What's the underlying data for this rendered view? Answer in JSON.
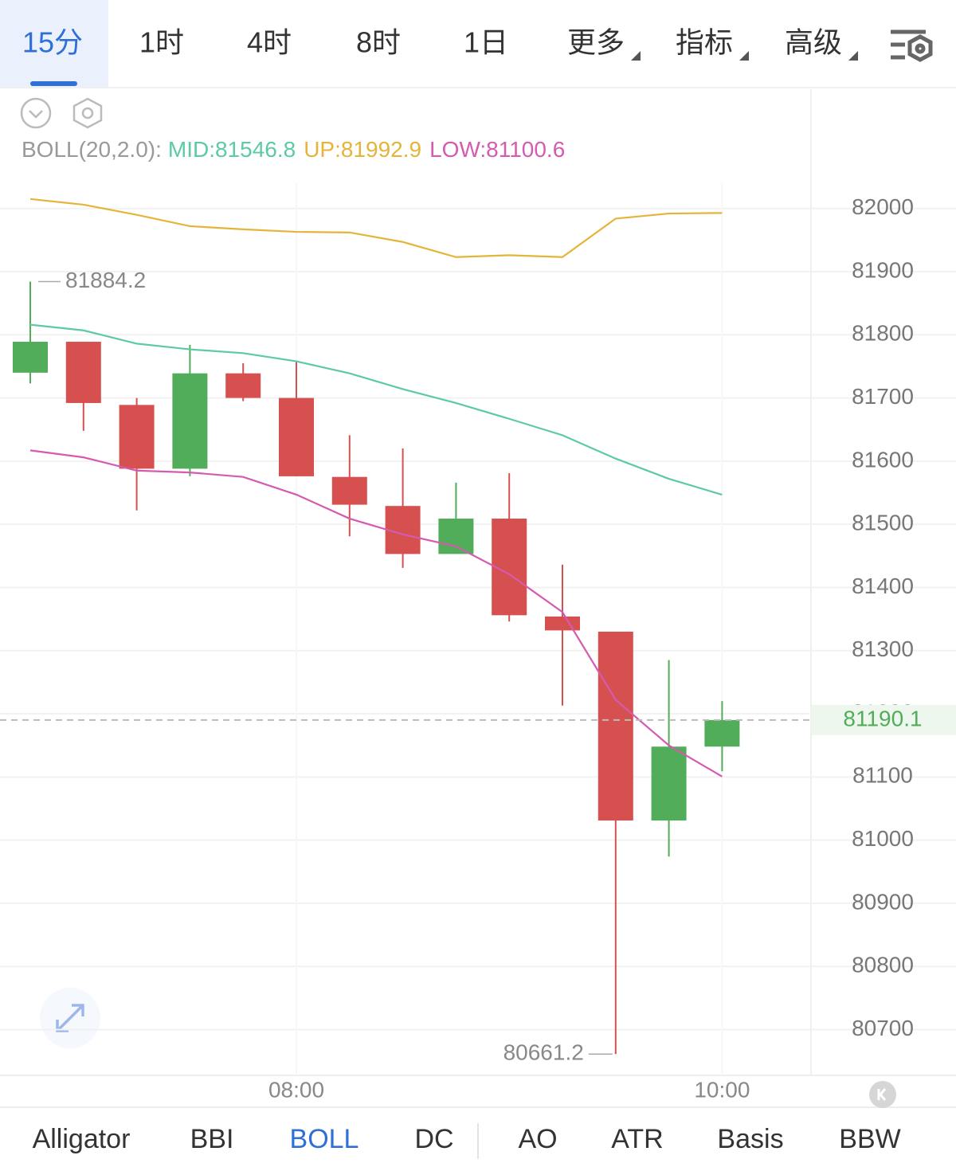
{
  "tabs": [
    "15分",
    "1时",
    "4时",
    "8时",
    "1日",
    "更多",
    "指标",
    "高级"
  ],
  "indicator_tabs": [
    "Alligator",
    "BBI",
    "BOLL",
    "DC",
    "AO",
    "ATR",
    "Basis",
    "BBW"
  ],
  "chart_data": {
    "type": "candlestick",
    "indicator": "BOLL(20,2.0):",
    "categories": [
      null,
      null,
      null,
      null,
      null,
      "08:00",
      null,
      null,
      null,
      null,
      null,
      null,
      null,
      "10:00"
    ],
    "open": [
      81740,
      81789,
      81689,
      81588,
      81739,
      81700,
      81575,
      81529,
      81453,
      81509,
      81354,
      81330,
      81031,
      81148
    ],
    "high": [
      81884.2,
      81789,
      81700,
      81784,
      81755,
      81757,
      81641,
      81620,
      81566,
      81581,
      81436,
      81330,
      81285,
      81220
    ],
    "low": [
      81723,
      81648,
      81522,
      81576,
      81695,
      81576,
      81481,
      81431,
      81453,
      81346,
      81213,
      80661.2,
      80974,
      81109
    ],
    "close": [
      81789,
      81692,
      81588,
      81739,
      81700,
      81576,
      81531,
      81453,
      81509,
      81356,
      81332,
      81031,
      81148,
      81190.1
    ],
    "up_color": "#52ad5a",
    "down_color": "#d5504f",
    "series": [
      {
        "label": "MID:81546.8",
        "color": "#5cc9a7",
        "values": [
          81816,
          81807,
          81786,
          81777,
          81771,
          81758,
          81739,
          81714,
          81692,
          81667,
          81641,
          81604,
          81572,
          81546.8
        ]
      },
      {
        "label": "UP:81992.9",
        "color": "#e5b43a",
        "values": [
          82015,
          82006,
          81990,
          81972,
          81967,
          81963,
          81962,
          81947,
          81923,
          81926,
          81923,
          81984,
          81992,
          81992.9
        ]
      },
      {
        "label": "LOW:81100.6",
        "color": "#d45bb0",
        "values": [
          81617,
          81606,
          81585,
          81582,
          81575,
          81547,
          81509,
          81484,
          81465,
          81421,
          81361,
          81222,
          81150,
          81100.6
        ]
      }
    ],
    "ylim": [
      80630,
      82040
    ],
    "yticks": [
      80700,
      80800,
      80900,
      81000,
      81100,
      81200,
      81300,
      81400,
      81500,
      81600,
      81700,
      81800,
      81900,
      82000
    ],
    "grid": true
  }
}
